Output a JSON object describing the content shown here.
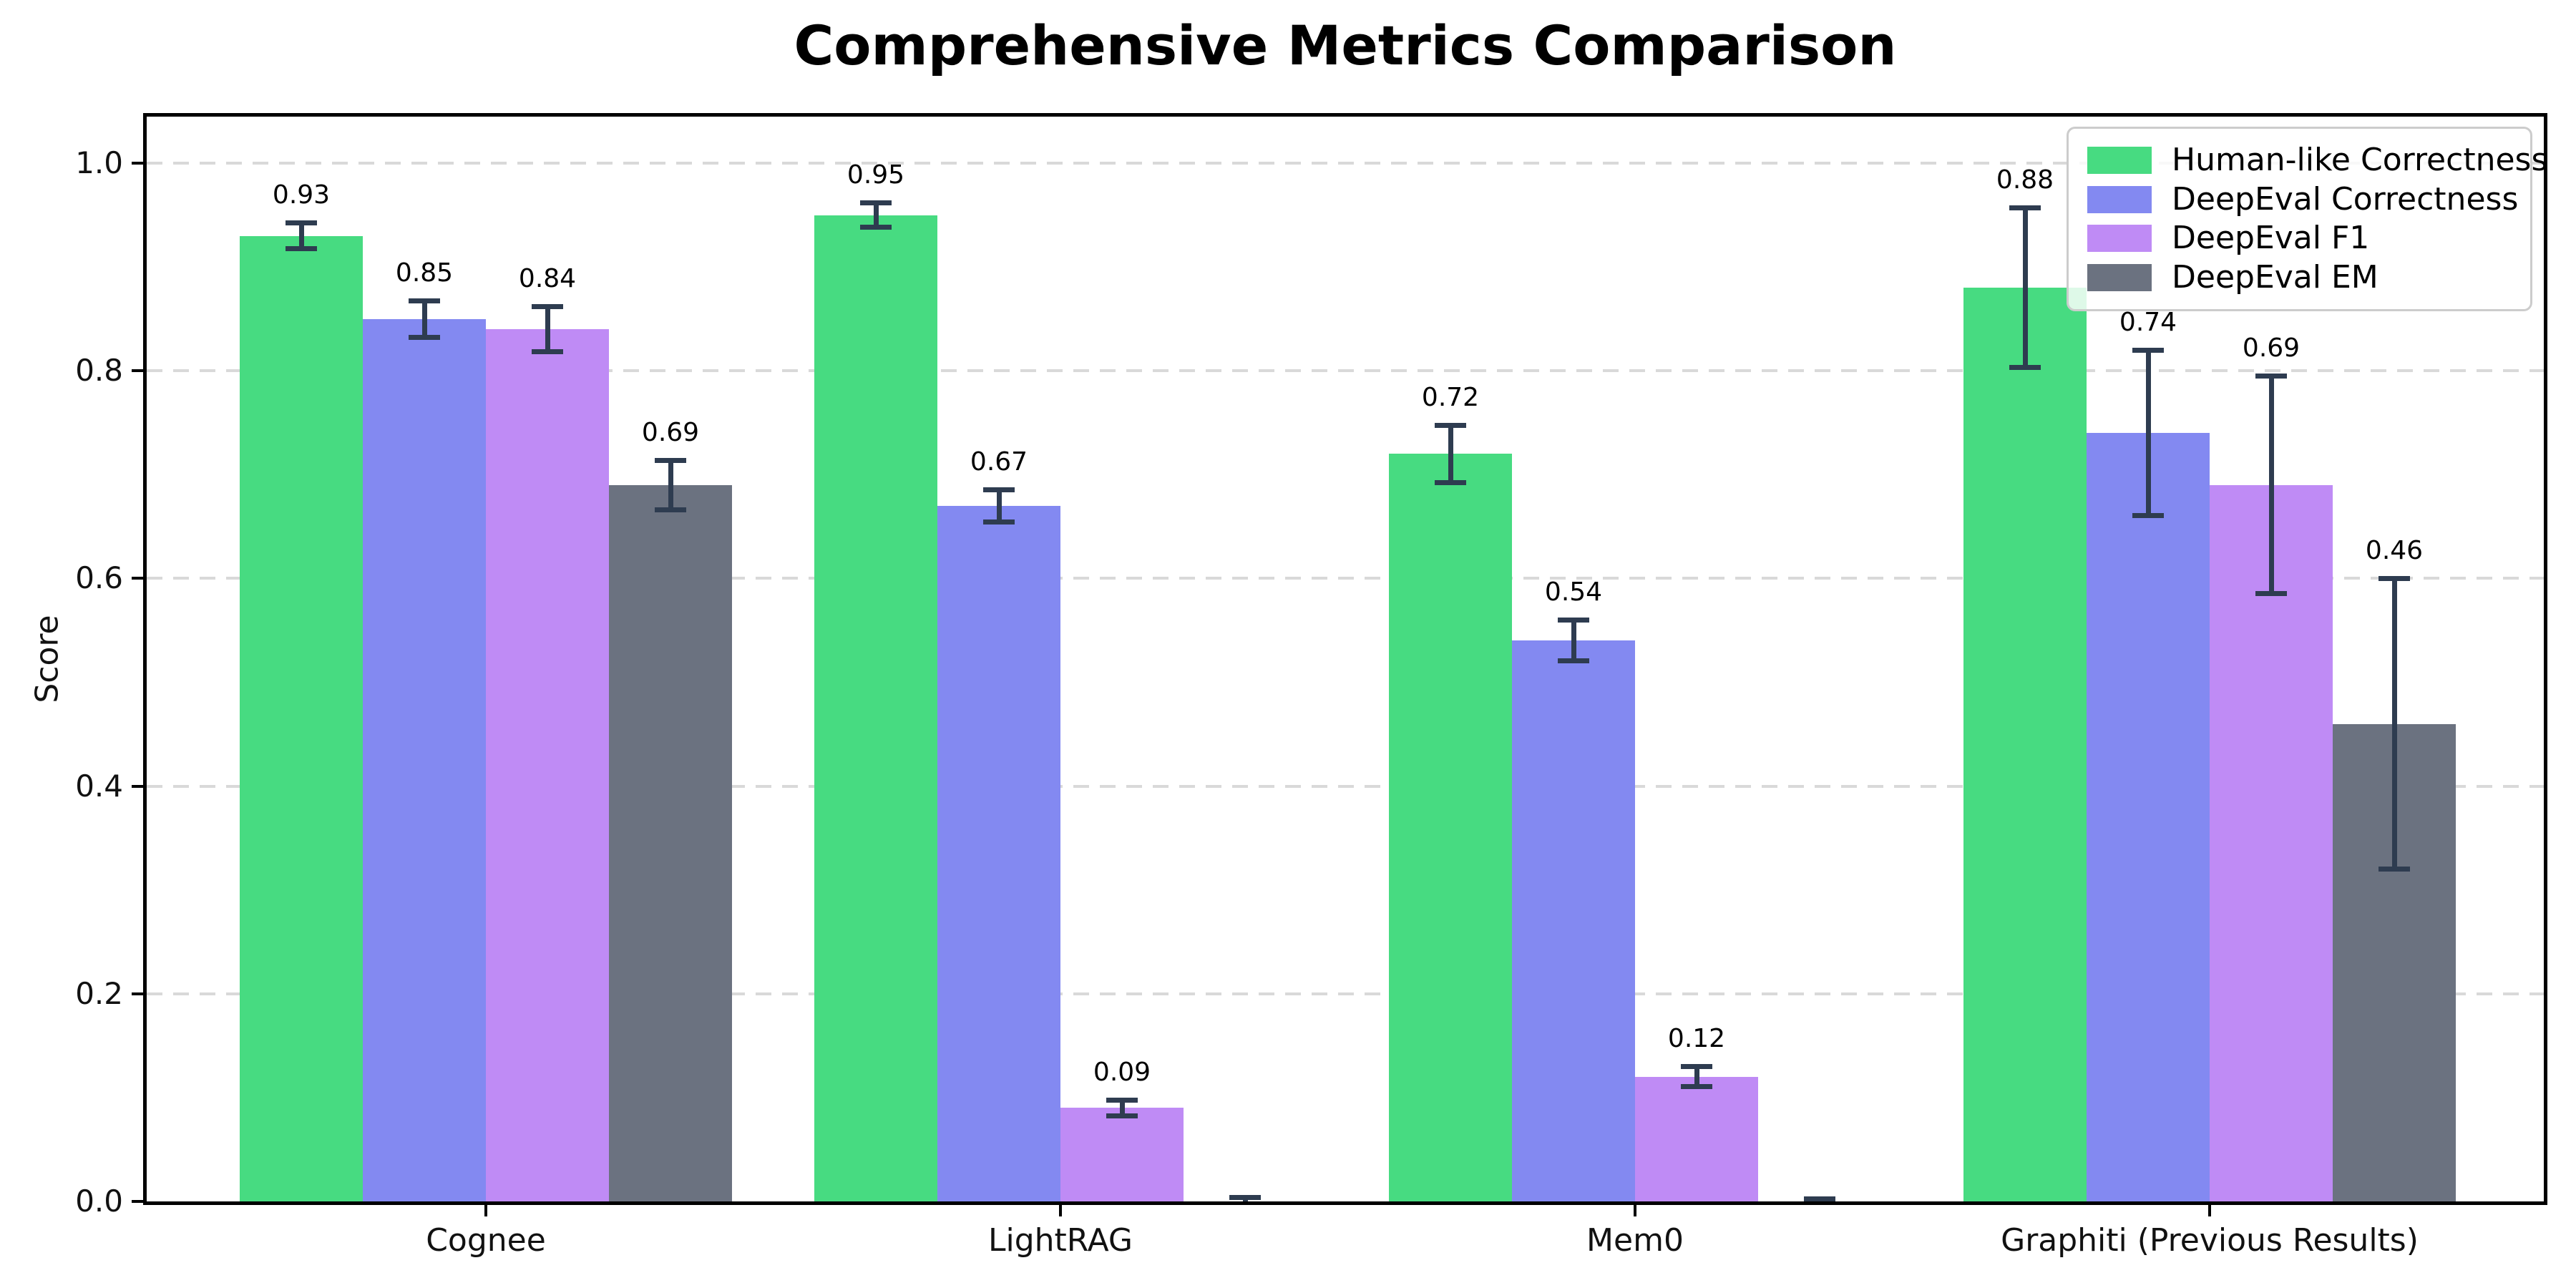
{
  "chart_data": {
    "type": "bar",
    "title": "Comprehensive Metrics Comparison",
    "ylabel": "Score",
    "ylim": [
      0,
      1.05
    ],
    "grid": "horizontal-dashed",
    "legend_position": "upper-right",
    "categories": [
      "Cognee",
      "LightRAG",
      "Mem0",
      "Graphiti (Previous Results)"
    ],
    "yticks": [
      "0.0",
      "0.2",
      "0.4",
      "0.6",
      "0.8",
      "1.0"
    ],
    "series": [
      {
        "name": "Human-like Correctness",
        "color": "#47db81",
        "values": [
          0.93,
          0.95,
          0.72,
          0.88
        ],
        "errors": [
          0.013,
          0.012,
          0.028,
          0.077
        ],
        "labels": [
          "0.93",
          "0.95",
          "0.72",
          "0.88"
        ]
      },
      {
        "name": "DeepEval Correctness",
        "color": "#8389f1",
        "values": [
          0.85,
          0.67,
          0.54,
          0.74
        ],
        "errors": [
          0.018,
          0.016,
          0.02,
          0.08
        ],
        "labels": [
          "0.85",
          "0.67",
          "0.54",
          "0.74"
        ]
      },
      {
        "name": "DeepEval F1",
        "color": "#bf8bf5",
        "values": [
          0.84,
          0.09,
          0.12,
          0.69
        ],
        "errors": [
          0.022,
          0.008,
          0.01,
          0.105
        ],
        "labels": [
          "0.84",
          "0.09",
          "0.12",
          "0.69"
        ]
      },
      {
        "name": "DeepEval EM",
        "color": "#6b7280",
        "values": [
          0.69,
          0.0,
          0.0,
          0.46
        ],
        "errors": [
          0.024,
          0.004,
          0.003,
          0.14
        ],
        "labels": [
          "0.69",
          "",
          "",
          "0.46"
        ]
      }
    ],
    "colors": {
      "error_bar": "#2e3c50",
      "grid": "#d9d9d9",
      "spine": "#000000",
      "background": "#ffffff"
    }
  }
}
